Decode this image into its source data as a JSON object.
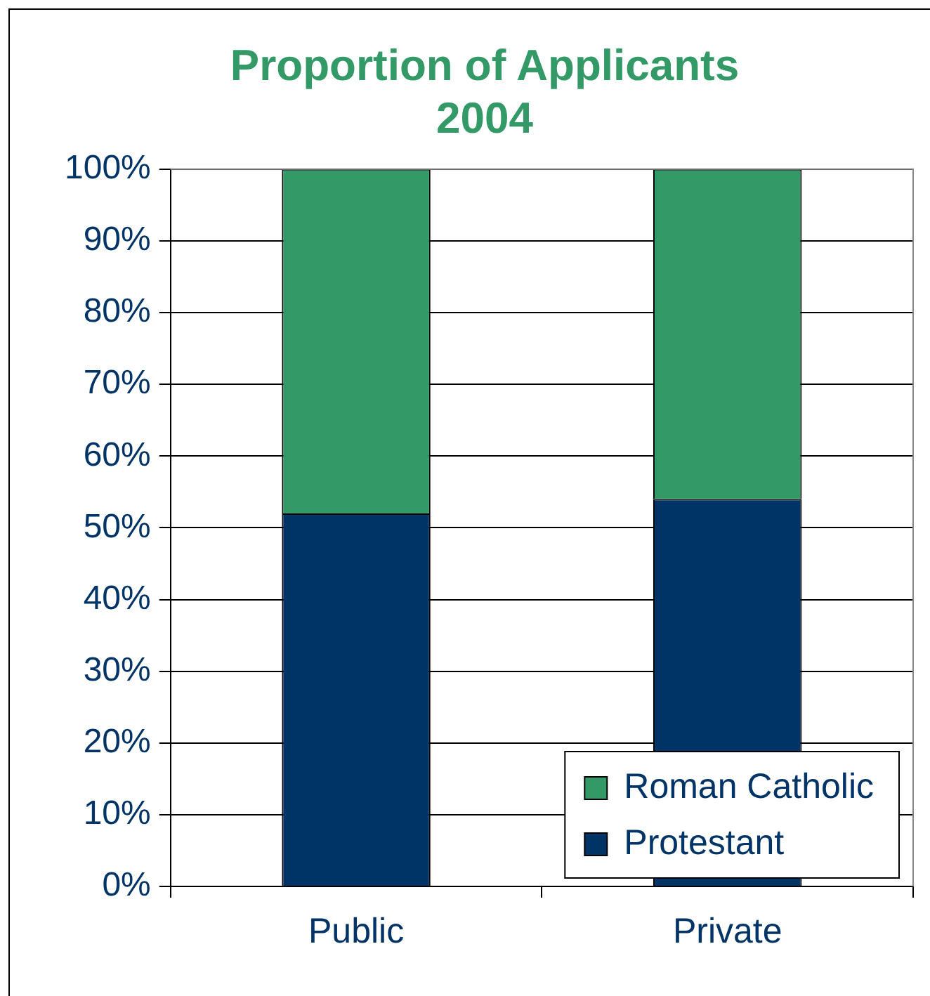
{
  "chart_data": {
    "type": "bar",
    "title": "Proportion of Applicants\n2004",
    "categories": [
      "Public",
      "Private"
    ],
    "stacked": true,
    "series": [
      {
        "name": "Protestant",
        "color": "#003366",
        "values": [
          52,
          54
        ]
      },
      {
        "name": "Roman Catholic",
        "color": "#339966",
        "values": [
          48,
          46
        ]
      }
    ],
    "ylim": [
      0,
      100
    ],
    "yticks": [
      {
        "value": 0,
        "label": "0%"
      },
      {
        "value": 10,
        "label": "10%"
      },
      {
        "value": 20,
        "label": "20%"
      },
      {
        "value": 30,
        "label": "30%"
      },
      {
        "value": 40,
        "label": "40%"
      },
      {
        "value": 50,
        "label": "50%"
      },
      {
        "value": 60,
        "label": "60%"
      },
      {
        "value": 70,
        "label": "70%"
      },
      {
        "value": 80,
        "label": "80%"
      },
      {
        "value": 90,
        "label": "90%"
      },
      {
        "value": 100,
        "label": "100%"
      }
    ],
    "grid": "y",
    "legend": "bottom right"
  }
}
